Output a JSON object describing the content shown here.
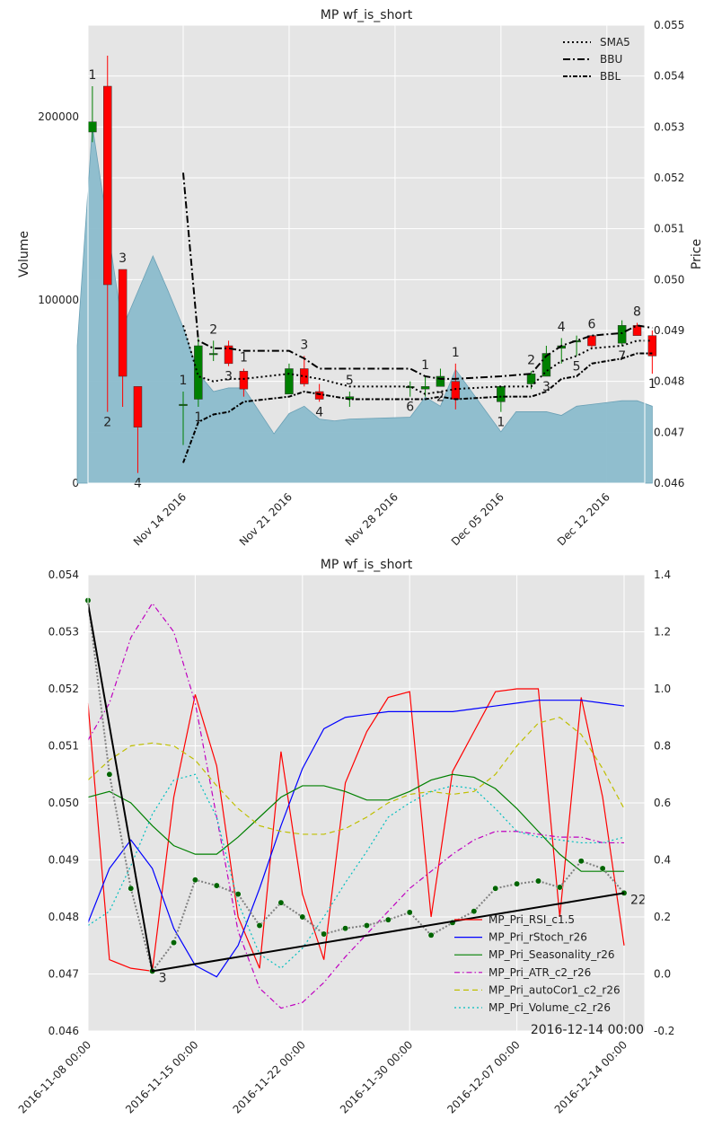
{
  "colors": {
    "plot_bg": "#e5e5e5",
    "grid": "#ffffff",
    "up": "#008000",
    "down": "#ff0000",
    "volume": "#8bbccc",
    "volume_edge": "#6aa0b5",
    "black": "#000000",
    "rsi": "#ff0000",
    "rstoch": "#0000ff",
    "seasonality": "#008000",
    "atr": "#bf00bf",
    "autocor": "#bfbf00",
    "volume_ind": "#00bfbf",
    "dots": "#808080",
    "dot_fill": "#006400"
  },
  "chart_data": [
    {
      "type": "candlestick",
      "title": "MP wf_is_short",
      "ylabel_left": "Volume",
      "ylabel_right": "Price",
      "left_ylim": [
        0,
        250000
      ],
      "right_ylim": [
        0.046,
        0.055
      ],
      "left_ticks": [
        0,
        100000,
        200000
      ],
      "left_tick_labels": [
        "0",
        "100000",
        "200000"
      ],
      "right_ticks": [
        0.046,
        0.047,
        0.048,
        0.049,
        0.05,
        0.051,
        0.052,
        0.053,
        0.054,
        0.055
      ],
      "right_tick_labels": [
        "0.046",
        "0.047",
        "0.048",
        "0.049",
        "0.050",
        "0.051",
        "0.052",
        "0.053",
        "0.054",
        "0.055"
      ],
      "x_tick_labels": [
        "Nov 14 2016",
        "Nov 21 2016",
        "Nov 28 2016",
        "Dec 05 2016",
        "Dec 12 2016"
      ],
      "x_tick_dates": [
        "2016-11-14",
        "2016-11-21",
        "2016-11-28",
        "2016-12-05",
        "2016-12-12"
      ],
      "grid": true,
      "legend_position": "top-right",
      "legend": [
        {
          "name": "SMA5",
          "style": "dotted"
        },
        {
          "name": "BBU",
          "style": "dashdot"
        },
        {
          "name": "BBL",
          "style": "dashdot-dense"
        }
      ],
      "candles": [
        {
          "date": "2016-11-08",
          "open": 0.0529,
          "high": 0.0538,
          "low": 0.0527,
          "close": 0.0531,
          "label": "1"
        },
        {
          "date": "2016-11-09",
          "open": 0.0538,
          "high": 0.0544,
          "low": 0.0474,
          "close": 0.0499,
          "label": "2"
        },
        {
          "date": "2016-11-10",
          "open": 0.0502,
          "high": 0.0502,
          "low": 0.0475,
          "close": 0.0481,
          "label": "3"
        },
        {
          "date": "2016-11-11",
          "open": 0.0479,
          "high": 0.0479,
          "low": 0.0462,
          "close": 0.0471,
          "label": "4"
        },
        {
          "date": "2016-11-14",
          "open": 0.04755,
          "high": 0.0478,
          "low": 0.04675,
          "close": 0.04755,
          "label": "1"
        },
        {
          "date": "2016-11-15",
          "open": 0.04765,
          "high": 0.04885,
          "low": 0.0475,
          "close": 0.0487,
          "label": "1"
        },
        {
          "date": "2016-11-16",
          "open": 0.04855,
          "high": 0.0488,
          "low": 0.0484,
          "close": 0.04855,
          "label": "2"
        },
        {
          "date": "2016-11-17",
          "open": 0.0487,
          "high": 0.0488,
          "low": 0.0483,
          "close": 0.04835,
          "label": "3"
        },
        {
          "date": "2016-11-18",
          "open": 0.0482,
          "high": 0.04825,
          "low": 0.0477,
          "close": 0.04785,
          "label": "1"
        },
        {
          "date": "2016-11-21",
          "open": 0.04775,
          "high": 0.04835,
          "low": 0.04775,
          "close": 0.04825,
          "label": ""
        },
        {
          "date": "2016-11-22",
          "open": 0.04825,
          "high": 0.0485,
          "low": 0.0479,
          "close": 0.04795,
          "label": "3"
        },
        {
          "date": "2016-11-23",
          "open": 0.0478,
          "high": 0.04795,
          "low": 0.0476,
          "close": 0.04765,
          "label": "4"
        },
        {
          "date": "2016-11-25",
          "open": 0.04765,
          "high": 0.0478,
          "low": 0.0475,
          "close": 0.0477,
          "label": "5"
        },
        {
          "date": "2016-11-29",
          "open": 0.0479,
          "high": 0.048,
          "low": 0.0477,
          "close": 0.0479,
          "label": "6"
        },
        {
          "date": "2016-11-30",
          "open": 0.04785,
          "high": 0.0481,
          "low": 0.0477,
          "close": 0.0479,
          "label": "1"
        },
        {
          "date": "2016-12-01",
          "open": 0.0479,
          "high": 0.04825,
          "low": 0.0479,
          "close": 0.0481,
          "label": "2"
        },
        {
          "date": "2016-12-02",
          "open": 0.048,
          "high": 0.04835,
          "low": 0.04745,
          "close": 0.04765,
          "label": "1"
        },
        {
          "date": "2016-12-05",
          "open": 0.0476,
          "high": 0.0479,
          "low": 0.0474,
          "close": 0.0479,
          "label": "1"
        },
        {
          "date": "2016-12-07",
          "open": 0.04795,
          "high": 0.0482,
          "low": 0.04785,
          "close": 0.04815,
          "label": "2"
        },
        {
          "date": "2016-12-08",
          "open": 0.0481,
          "high": 0.0487,
          "low": 0.0481,
          "close": 0.04855,
          "label": "3"
        },
        {
          "date": "2016-12-09",
          "open": 0.04865,
          "high": 0.04885,
          "low": 0.04835,
          "close": 0.0487,
          "label": "4"
        },
        {
          "date": "2016-12-10",
          "open": 0.0488,
          "high": 0.0489,
          "low": 0.0485,
          "close": 0.0488,
          "label": "5"
        },
        {
          "date": "2016-12-11",
          "open": 0.0489,
          "high": 0.0489,
          "low": 0.04865,
          "close": 0.0487,
          "label": "6"
        },
        {
          "date": "2016-12-13",
          "open": 0.04875,
          "high": 0.0492,
          "low": 0.0487,
          "close": 0.0491,
          "label": "7"
        },
        {
          "date": "2016-12-14",
          "open": 0.0491,
          "high": 0.04915,
          "low": 0.0489,
          "close": 0.0489,
          "label": "8"
        },
        {
          "date": "2016-12-15",
          "open": 0.0489,
          "high": 0.049,
          "low": 0.04815,
          "close": 0.0485,
          "label": "1"
        }
      ],
      "volume": {
        "dates": [
          "2016-11-07",
          "2016-11-08",
          "2016-11-10",
          "2016-11-12",
          "2016-11-13",
          "2016-11-14",
          "2016-11-15",
          "2016-11-16",
          "2016-11-17",
          "2016-11-18",
          "2016-11-20",
          "2016-11-21",
          "2016-11-22",
          "2016-11-23",
          "2016-11-24",
          "2016-11-25",
          "2016-11-29",
          "2016-11-30",
          "2016-12-01",
          "2016-12-02",
          "2016-12-05",
          "2016-12-06",
          "2016-12-08",
          "2016-12-09",
          "2016-12-10",
          "2016-12-11",
          "2016-12-12",
          "2016-12-13",
          "2016-12-14",
          "2016-12-15"
        ],
        "values": [
          75000,
          195000,
          85000,
          124000,
          105000,
          85000,
          60000,
          50000,
          52000,
          52000,
          27000,
          38000,
          42000,
          35000,
          34000,
          35000,
          36000,
          47000,
          42000,
          62000,
          28000,
          39000,
          39000,
          37000,
          42000,
          43000,
          44000,
          45000,
          45000,
          42000
        ]
      },
      "sma5": {
        "dates": [
          "2016-11-14",
          "2016-11-15",
          "2016-11-16",
          "2016-11-17",
          "2016-11-18",
          "2016-11-21",
          "2016-11-22",
          "2016-11-23",
          "2016-11-25",
          "2016-11-29",
          "2016-11-30",
          "2016-12-01",
          "2016-12-02",
          "2016-12-05",
          "2016-12-07",
          "2016-12-08",
          "2016-12-09",
          "2016-12-10",
          "2016-12-11",
          "2016-12-13",
          "2016-12-14",
          "2016-12-15"
        ],
        "values": [
          0.0491,
          0.0481,
          0.048,
          0.04805,
          0.04805,
          0.04815,
          0.0481,
          0.04805,
          0.0479,
          0.0479,
          0.04775,
          0.0478,
          0.04785,
          0.0479,
          0.0479,
          0.0482,
          0.0484,
          0.0485,
          0.04865,
          0.0487,
          0.0488,
          0.0488
        ]
      },
      "bbu": {
        "dates": [
          "2016-11-14",
          "2016-11-15",
          "2016-11-16",
          "2016-11-17",
          "2016-11-18",
          "2016-11-21",
          "2016-11-22",
          "2016-11-23",
          "2016-11-25",
          "2016-11-29",
          "2016-11-30",
          "2016-12-01",
          "2016-12-02",
          "2016-12-05",
          "2016-12-07",
          "2016-12-08",
          "2016-12-09",
          "2016-12-10",
          "2016-12-11",
          "2016-12-13",
          "2016-12-14",
          "2016-12-15"
        ],
        "values": [
          0.0521,
          0.0488,
          0.04865,
          0.04865,
          0.0486,
          0.0486,
          0.04845,
          0.04825,
          0.04825,
          0.04825,
          0.0481,
          0.04805,
          0.04805,
          0.0481,
          0.04815,
          0.0485,
          0.0487,
          0.0488,
          0.0489,
          0.04895,
          0.0491,
          0.04905
        ]
      },
      "bbl": {
        "dates": [
          "2016-11-14",
          "2016-11-15",
          "2016-11-16",
          "2016-11-17",
          "2016-11-18",
          "2016-11-21",
          "2016-11-22",
          "2016-11-23",
          "2016-11-25",
          "2016-11-29",
          "2016-11-30",
          "2016-12-01",
          "2016-12-02",
          "2016-12-05",
          "2016-12-07",
          "2016-12-08",
          "2016-12-09",
          "2016-12-10",
          "2016-12-11",
          "2016-12-13",
          "2016-12-14",
          "2016-12-15"
        ],
        "values": [
          0.0464,
          0.0472,
          0.04735,
          0.0474,
          0.0476,
          0.0477,
          0.0478,
          0.04775,
          0.04765,
          0.04765,
          0.04765,
          0.0477,
          0.04765,
          0.0477,
          0.0477,
          0.0478,
          0.04805,
          0.0481,
          0.04835,
          0.04845,
          0.04855,
          0.04855
        ]
      }
    },
    {
      "type": "line",
      "title": "MP wf_is_short",
      "left_ylim": [
        0.046,
        0.054
      ],
      "right_ylim": [
        -0.2,
        1.4
      ],
      "left_ticks": [
        0.046,
        0.047,
        0.048,
        0.049,
        0.05,
        0.051,
        0.052,
        0.053,
        0.054
      ],
      "left_tick_labels": [
        "0.046",
        "0.047",
        "0.048",
        "0.049",
        "0.050",
        "0.051",
        "0.052",
        "0.053",
        "0.054"
      ],
      "right_ticks": [
        -0.2,
        0.0,
        0.2,
        0.4,
        0.6,
        0.8,
        1.0,
        1.2,
        1.4
      ],
      "right_tick_labels": [
        "-0.2",
        "0.0",
        "0.2",
        "0.4",
        "0.6",
        "0.8",
        "1.0",
        "1.2",
        "1.4"
      ],
      "x_tick_labels": [
        "2016-11-08 00:00",
        "2016-11-15 00:00",
        "2016-11-22 00:00",
        "2016-11-30 00:00",
        "2016-12-07 00:00",
        "2016-12-14 00:00"
      ],
      "x_tick_index": [
        0,
        5,
        10,
        15,
        20,
        25
      ],
      "grid": true,
      "legend_position": "bottom-right",
      "annotation": "2016-12-14 00:00",
      "pivot_labels": [
        {
          "index": 3,
          "price": 0.04705,
          "text": "3"
        },
        {
          "index": 25,
          "price": 0.04842,
          "text": "22"
        }
      ],
      "trend_line": {
        "index": [
          0,
          3,
          25
        ],
        "price": [
          0.0535,
          0.04705,
          0.04842
        ]
      },
      "dots": {
        "index": [
          0,
          1,
          2,
          3,
          4,
          5,
          6,
          7,
          8,
          9,
          10,
          11,
          12,
          13,
          14,
          15,
          16,
          17,
          18,
          19,
          20,
          21,
          22,
          23,
          24,
          25
        ],
        "price": [
          0.05355,
          0.0505,
          0.0485,
          0.04705,
          0.04755,
          0.04865,
          0.04855,
          0.0484,
          0.04785,
          0.04825,
          0.048,
          0.0477,
          0.0478,
          0.04785,
          0.04795,
          0.04808,
          0.04768,
          0.0479,
          0.0481,
          0.0485,
          0.04858,
          0.04863,
          0.04852,
          0.04898,
          0.04885,
          0.04842
        ]
      },
      "series": [
        {
          "name": "MP_Pri_RSI_c1.5",
          "style": "solid",
          "values": [
            0.95,
            0.05,
            0.02,
            0.01,
            0.62,
            0.98,
            0.73,
            0.2,
            0.02,
            0.78,
            0.28,
            0.05,
            0.67,
            0.85,
            0.97,
            0.99,
            0.2,
            0.71,
            0.85,
            0.99,
            1.0,
            1.0,
            0.2,
            0.97,
            0.62,
            0.1
          ]
        },
        {
          "name": "MP_Pri_rStoch_r26",
          "style": "solid",
          "values": [
            0.18,
            0.37,
            0.47,
            0.37,
            0.16,
            0.03,
            -0.01,
            0.1,
            0.3,
            0.52,
            0.72,
            0.86,
            0.9,
            0.91,
            0.92,
            0.92,
            0.92,
            0.92,
            0.93,
            0.94,
            0.95,
            0.96,
            0.96,
            0.96,
            0.95,
            0.94
          ]
        },
        {
          "name": "MP_Pri_Seasonality_r26",
          "style": "solid",
          "values": [
            0.62,
            0.64,
            0.6,
            0.52,
            0.45,
            0.42,
            0.42,
            0.48,
            0.55,
            0.62,
            0.66,
            0.66,
            0.64,
            0.61,
            0.61,
            0.64,
            0.68,
            0.7,
            0.69,
            0.65,
            0.58,
            0.5,
            0.42,
            0.36,
            0.36,
            0.36
          ]
        },
        {
          "name": "MP_Pri_ATR_c2_r26",
          "style": "dashdot",
          "values": [
            0.82,
            0.95,
            1.18,
            1.3,
            1.2,
            0.95,
            0.55,
            0.15,
            -0.05,
            -0.12,
            -0.1,
            -0.03,
            0.06,
            0.14,
            0.22,
            0.3,
            0.36,
            0.42,
            0.47,
            0.5,
            0.5,
            0.49,
            0.48,
            0.48,
            0.46,
            0.46
          ]
        },
        {
          "name": "MP_Pri_autoCor1_c2_r26",
          "style": "dashed",
          "values": [
            0.68,
            0.75,
            0.8,
            0.81,
            0.8,
            0.75,
            0.66,
            0.58,
            0.52,
            0.5,
            0.49,
            0.49,
            0.51,
            0.55,
            0.6,
            0.63,
            0.64,
            0.63,
            0.64,
            0.7,
            0.8,
            0.88,
            0.9,
            0.84,
            0.72,
            0.58
          ]
        },
        {
          "name": "MP_Pri_Volume_c2_r26",
          "style": "dotted",
          "values": [
            0.17,
            0.22,
            0.38,
            0.56,
            0.68,
            0.7,
            0.55,
            0.25,
            0.07,
            0.02,
            0.09,
            0.2,
            0.32,
            0.43,
            0.55,
            0.6,
            0.64,
            0.66,
            0.65,
            0.58,
            0.5,
            0.48,
            0.47,
            0.46,
            0.46,
            0.48
          ]
        }
      ]
    }
  ]
}
